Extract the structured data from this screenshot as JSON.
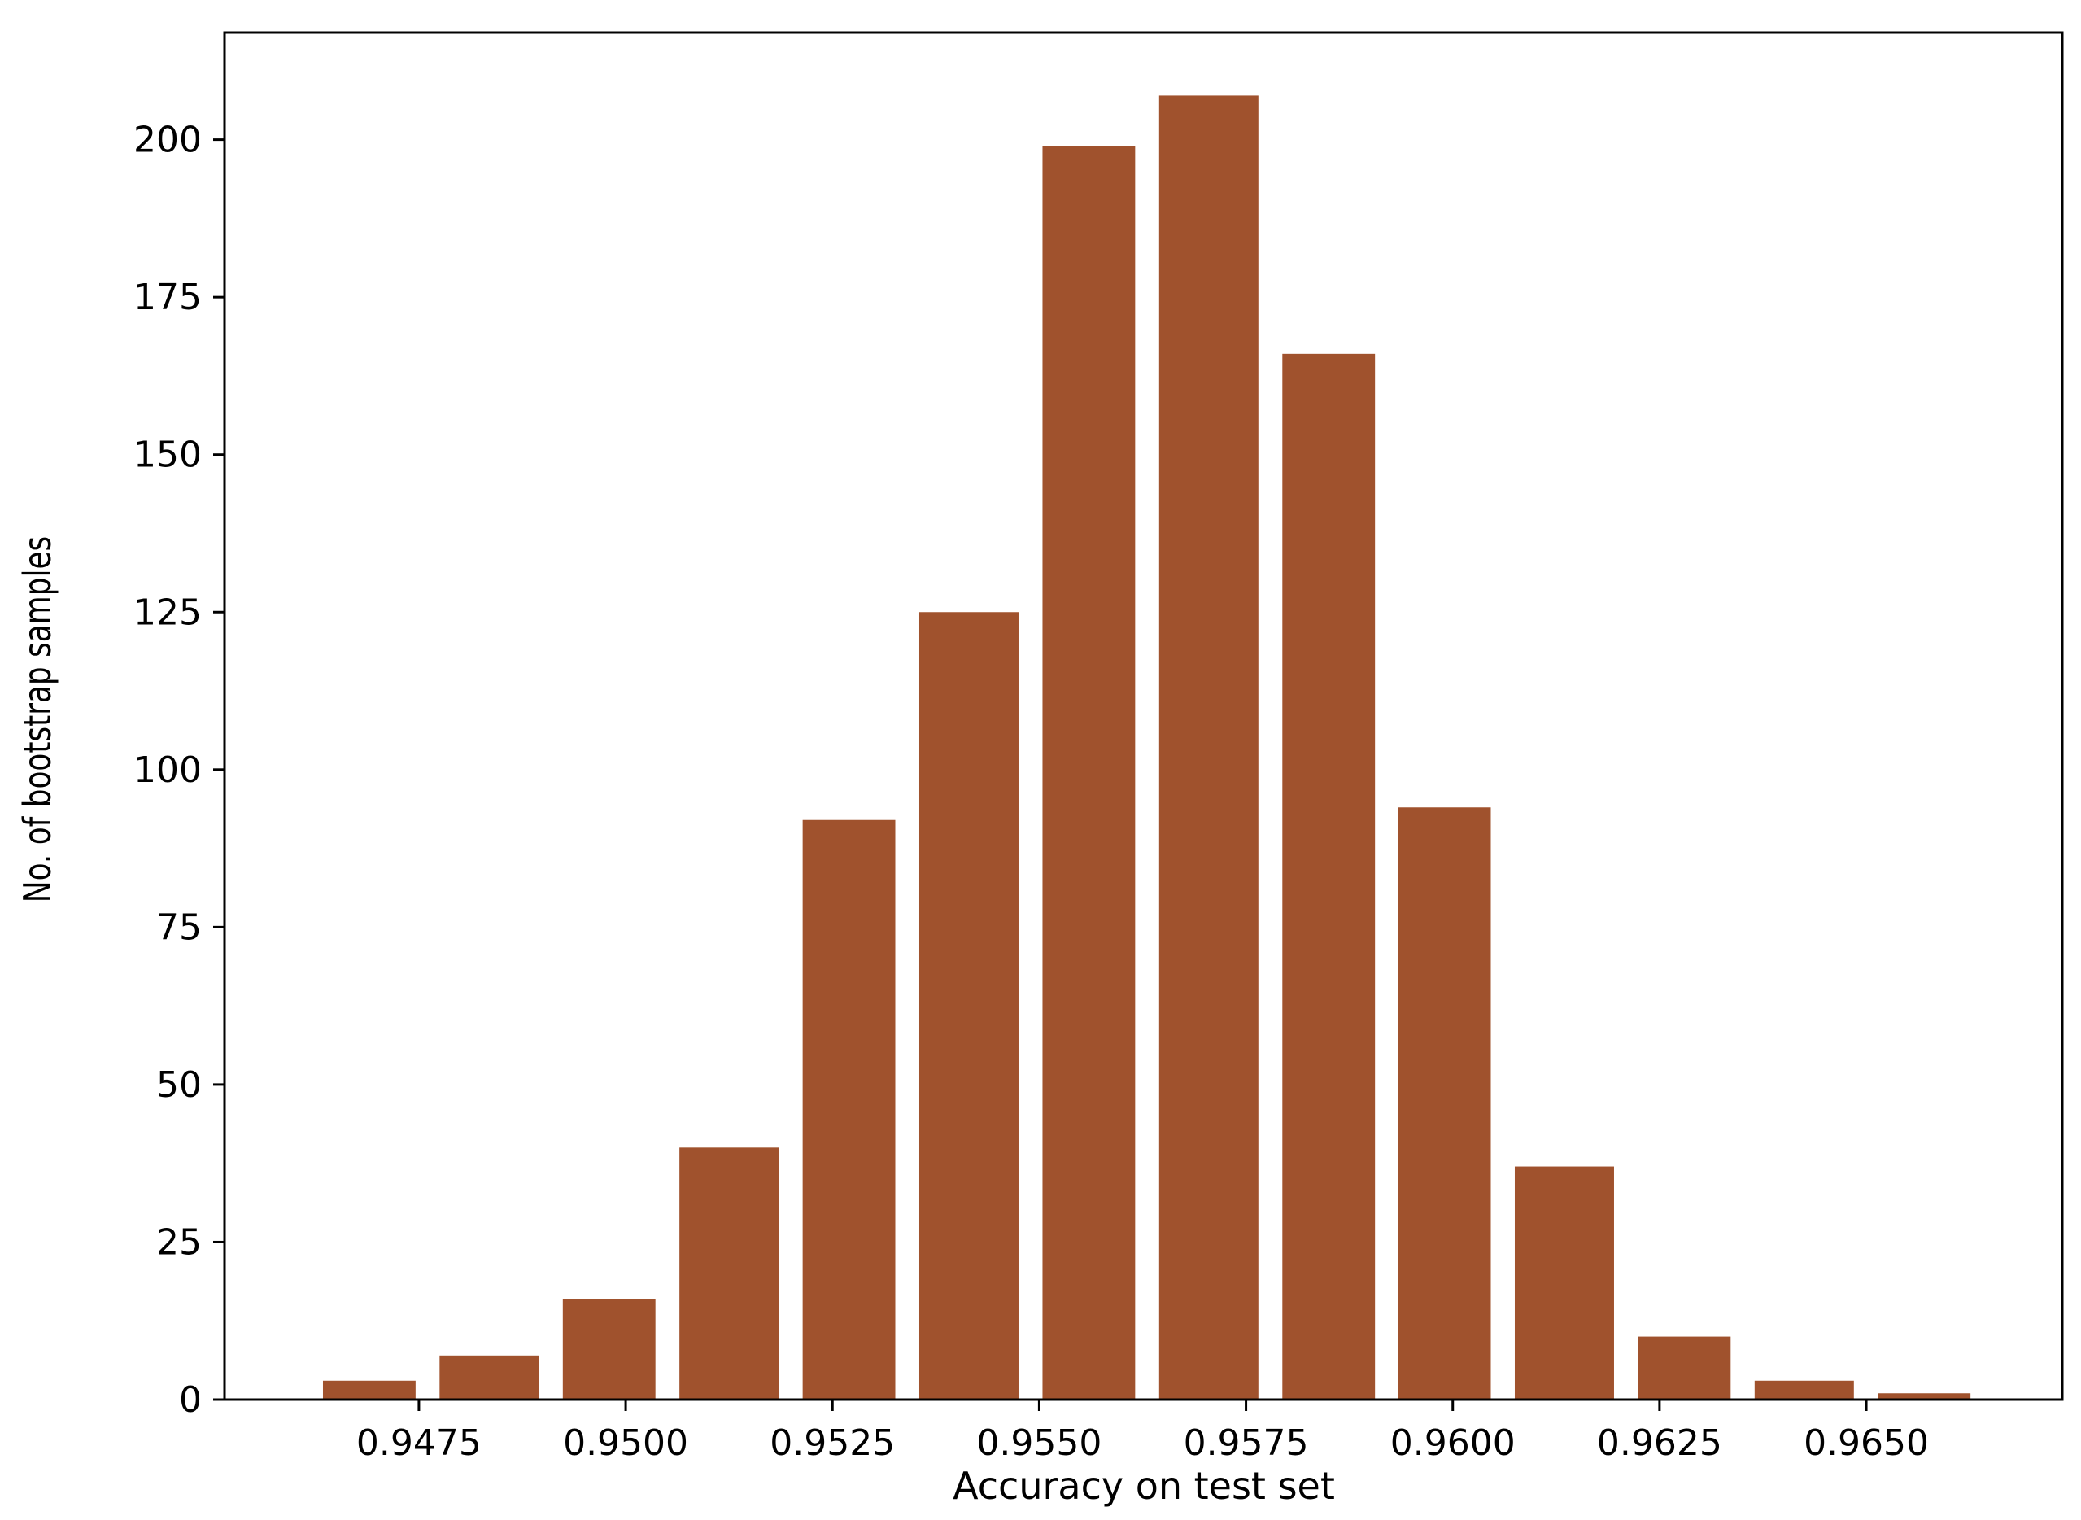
{
  "chart_data": {
    "type": "bar",
    "title": "",
    "xlabel": "Accuracy on test set",
    "ylabel": "No. of bootstrap samples",
    "bar_color": "#A0522D",
    "bins": [
      {
        "x0": 0.9462,
        "x1": 0.9476,
        "value": 3
      },
      {
        "x0": 0.9476,
        "x1": 0.9491,
        "value": 7
      },
      {
        "x0": 0.9491,
        "x1": 0.9505,
        "value": 16
      },
      {
        "x0": 0.9505,
        "x1": 0.952,
        "value": 40
      },
      {
        "x0": 0.952,
        "x1": 0.9534,
        "value": 92
      },
      {
        "x0": 0.9534,
        "x1": 0.9549,
        "value": 125
      },
      {
        "x0": 0.9549,
        "x1": 0.9563,
        "value": 199
      },
      {
        "x0": 0.9563,
        "x1": 0.9578,
        "value": 207
      },
      {
        "x0": 0.9578,
        "x1": 0.9592,
        "value": 166
      },
      {
        "x0": 0.9592,
        "x1": 0.9606,
        "value": 94
      },
      {
        "x0": 0.9606,
        "x1": 0.9621,
        "value": 37
      },
      {
        "x0": 0.9621,
        "x1": 0.9635,
        "value": 10
      },
      {
        "x0": 0.9635,
        "x1": 0.965,
        "value": 3
      },
      {
        "x0": 0.965,
        "x1": 0.9664,
        "value": 1
      }
    ],
    "xlim": [
      0.94515,
      0.96737
    ],
    "ylim": [
      0,
      217
    ],
    "xticks": [
      "0.9475",
      "0.9500",
      "0.9525",
      "0.9550",
      "0.9575",
      "0.9600",
      "0.9625",
      "0.9650"
    ],
    "yticks": [
      "0",
      "25",
      "50",
      "75",
      "100",
      "125",
      "150",
      "175",
      "200"
    ],
    "grid": false,
    "legend": "none"
  }
}
